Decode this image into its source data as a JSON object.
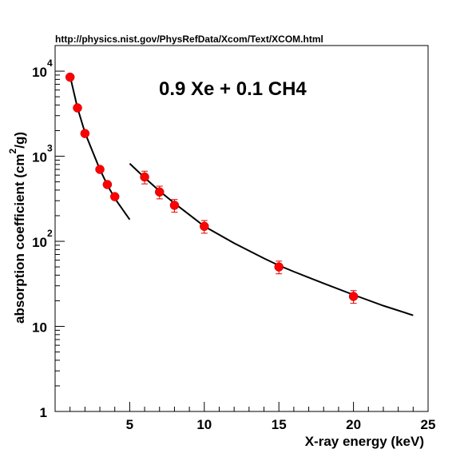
{
  "source_url": "http://physics.nist.gov/PhysRefData/Xcom/Text/XCOM.html",
  "chart_data": {
    "type": "scatter",
    "title": "0.9 Xe + 0.1 CH4",
    "xlabel": "X-ray energy (keV)",
    "ylabel": {
      "main": "absorption coefficient (cm",
      "superscript": "2",
      "suffix": "/g)"
    },
    "xlim": [
      0,
      25
    ],
    "ylim": [
      1,
      20000
    ],
    "yscale": "log",
    "grid": false,
    "x_ticks": [
      {
        "value": 5,
        "label": "5"
      },
      {
        "value": 10,
        "label": "10"
      },
      {
        "value": 15,
        "label": "15"
      },
      {
        "value": 20,
        "label": "20"
      },
      {
        "value": 25,
        "label": "25"
      }
    ],
    "y_ticks": [
      {
        "value": 1,
        "base": "1",
        "exp": ""
      },
      {
        "value": 10,
        "base": "10",
        "exp": ""
      },
      {
        "value": 100,
        "base": "10",
        "exp": "2"
      },
      {
        "value": 1000,
        "base": "10",
        "exp": "3"
      },
      {
        "value": 10000,
        "base": "10",
        "exp": "4"
      }
    ],
    "series": [
      {
        "marker_color": "#ff0000",
        "error_color": "#dd0000",
        "points": [
          {
            "x": 1.0,
            "y": 8500,
            "err": 0
          },
          {
            "x": 1.5,
            "y": 3700,
            "err": 0
          },
          {
            "x": 2.0,
            "y": 1850,
            "err": 0
          },
          {
            "x": 3.0,
            "y": 700,
            "err": 0
          },
          {
            "x": 3.5,
            "y": 465,
            "err": 0
          },
          {
            "x": 4.0,
            "y": 335,
            "err": 0
          },
          {
            "x": 6.0,
            "y": 570,
            "err": 0.17
          },
          {
            "x": 7.0,
            "y": 380,
            "err": 0.17
          },
          {
            "x": 8.0,
            "y": 265,
            "err": 0.17
          },
          {
            "x": 10.0,
            "y": 150,
            "err": 0.17
          },
          {
            "x": 15.0,
            "y": 50,
            "err": 0.17
          },
          {
            "x": 20.0,
            "y": 22.5,
            "err": 0.17
          }
        ]
      }
    ],
    "fit_curves": [
      {
        "color": "#000000",
        "points": [
          [
            1.0,
            8800
          ],
          [
            1.5,
            3700
          ],
          [
            2.0,
            1900
          ],
          [
            2.5,
            1150
          ],
          [
            3.0,
            700
          ],
          [
            3.5,
            460
          ],
          [
            4.0,
            320
          ],
          [
            4.5,
            240
          ],
          [
            5.0,
            180
          ]
        ]
      },
      {
        "color": "#000000",
        "points": [
          [
            5.0,
            820
          ],
          [
            6.0,
            560
          ],
          [
            7.0,
            390
          ],
          [
            8.0,
            280
          ],
          [
            9.0,
            205
          ],
          [
            10.0,
            150
          ],
          [
            12.0,
            95
          ],
          [
            14.0,
            63
          ],
          [
            15.0,
            52
          ],
          [
            16.0,
            44
          ],
          [
            18.0,
            32
          ],
          [
            20.0,
            23.5
          ],
          [
            22.0,
            17.5
          ],
          [
            24.0,
            13.5
          ]
        ]
      }
    ]
  }
}
